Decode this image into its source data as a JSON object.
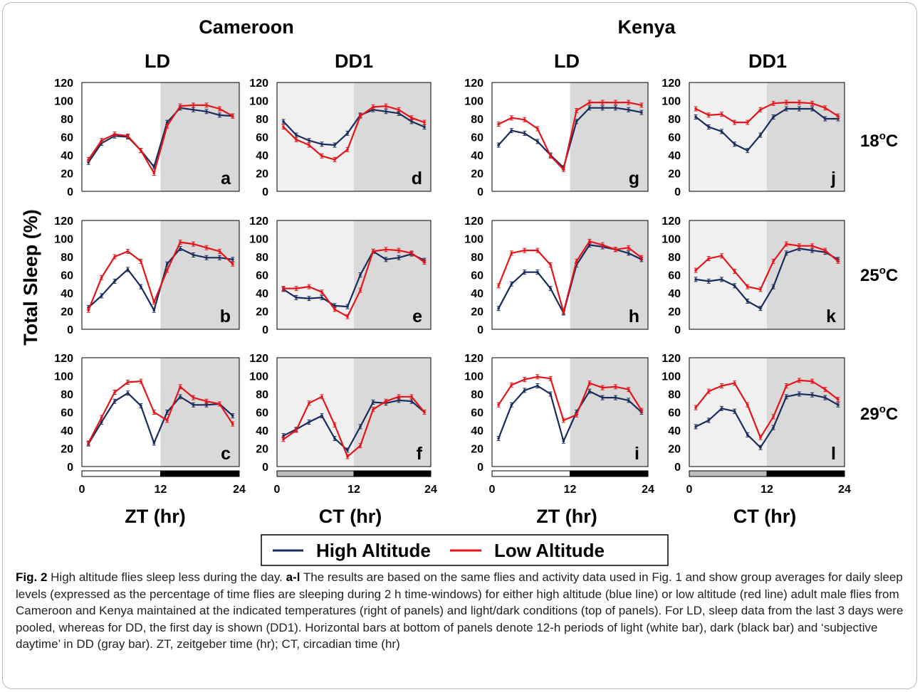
{
  "countries": [
    "Cameroon",
    "Kenya"
  ],
  "conditions": [
    "LD",
    "DD1",
    "LD",
    "DD1"
  ],
  "temperatures": [
    {
      "base": "18",
      "sup": "o",
      "unit": "C"
    },
    {
      "base": "25",
      "sup": "o",
      "unit": "C"
    },
    {
      "base": "29",
      "sup": "o",
      "unit": "C"
    }
  ],
  "ylabel": "Total Sleep (%)",
  "xlabels": [
    "ZT (hr)",
    "CT (hr)",
    "ZT (hr)",
    "CT (hr)"
  ],
  "legend": {
    "high": "High Altitude",
    "low": "Low Altitude"
  },
  "colors": {
    "high": "#1a2c5b",
    "low": "#e3151a",
    "light_period": "#ffffff",
    "subjective_day": "#f0f0f0",
    "dark_period": "#d9d9d9",
    "bar_dark": "#000000",
    "bar_gray": "#bdbdbd"
  },
  "caption": {
    "fig_label": "Fig. 2",
    "title": "High altitude flies sleep less during the day.",
    "panels_ref": "a-l",
    "text": "The results are based on the same flies and activity data used in Fig. 1 and show group averages for daily sleep levels (expressed as the percentage of time flies are sleeping during 2 h time-windows) for either high altitude (blue line) or low altitude (red line) adult male flies from Cameroon and Kenya maintained at the indicated temperatures (right of panels) and light/dark conditions (top of panels). For LD, sleep data from the last 3 days were pooled, whereas for DD, the first day is shown (DD1). Horizontal bars at bottom of panels denote 12-h periods of light (white bar), dark (black bar) and ‘subjective daytime’ in DD (gray bar). ZT, zeitgeber time (hr); CT, circadian time (hr)"
  },
  "chart_data": [
    {
      "panel": "a",
      "country": "Cameroon",
      "condition": "LD",
      "temp": "18oC",
      "type": "line",
      "x": [
        1,
        3,
        5,
        7,
        9,
        11,
        13,
        15,
        17,
        19,
        21,
        23
      ],
      "ylim": [
        0,
        120
      ],
      "xticks": [
        0,
        12,
        24
      ],
      "series": [
        {
          "name": "High Altitude",
          "values": [
            32,
            53,
            61,
            60,
            45,
            27,
            76,
            92,
            90,
            88,
            84,
            83
          ]
        },
        {
          "name": "Low Altitude",
          "values": [
            35,
            56,
            63,
            61,
            45,
            20,
            72,
            94,
            95,
            95,
            91,
            83
          ]
        }
      ]
    },
    {
      "panel": "b",
      "country": "Cameroon",
      "condition": "LD",
      "temp": "25oC",
      "type": "line",
      "x": [
        1,
        3,
        5,
        7,
        9,
        11,
        13,
        15,
        17,
        19,
        21,
        23
      ],
      "ylim": [
        0,
        120
      ],
      "xticks": [
        0,
        12,
        24
      ],
      "series": [
        {
          "name": "High Altitude",
          "values": [
            24,
            37,
            53,
            66,
            47,
            21,
            72,
            89,
            82,
            79,
            79,
            77
          ]
        },
        {
          "name": "Low Altitude",
          "values": [
            21,
            57,
            80,
            86,
            75,
            30,
            65,
            96,
            94,
            90,
            86,
            72
          ]
        }
      ]
    },
    {
      "panel": "c",
      "country": "Cameroon",
      "condition": "LD",
      "temp": "29oC",
      "type": "line",
      "x": [
        1,
        3,
        5,
        7,
        9,
        11,
        13,
        15,
        17,
        19,
        21,
        23
      ],
      "ylim": [
        0,
        120
      ],
      "xticks": [
        0,
        12,
        24
      ],
      "series": [
        {
          "name": "High Altitude",
          "values": [
            25,
            49,
            72,
            81,
            67,
            26,
            60,
            77,
            68,
            68,
            69,
            56
          ]
        },
        {
          "name": "Low Altitude",
          "values": [
            26,
            54,
            82,
            93,
            94,
            60,
            51,
            88,
            76,
            72,
            69,
            47
          ]
        }
      ]
    },
    {
      "panel": "d",
      "country": "Cameroon",
      "condition": "DD1",
      "temp": "18oC",
      "type": "line",
      "x": [
        1,
        3,
        5,
        7,
        9,
        11,
        13,
        15,
        17,
        19,
        21,
        23
      ],
      "ylim": [
        0,
        120
      ],
      "xticks": [
        0,
        12,
        24
      ],
      "series": [
        {
          "name": "High Altitude",
          "values": [
            77,
            62,
            56,
            52,
            51,
            64,
            84,
            90,
            88,
            86,
            77,
            71
          ]
        },
        {
          "name": "Low Altitude",
          "values": [
            71,
            57,
            51,
            39,
            35,
            46,
            83,
            93,
            94,
            90,
            81,
            76
          ]
        }
      ]
    },
    {
      "panel": "e",
      "country": "Cameroon",
      "condition": "DD1",
      "temp": "25oC",
      "type": "line",
      "x": [
        1,
        3,
        5,
        7,
        9,
        11,
        13,
        15,
        17,
        19,
        21,
        23
      ],
      "ylim": [
        0,
        120
      ],
      "xticks": [
        0,
        12,
        24
      ],
      "series": [
        {
          "name": "High Altitude",
          "values": [
            44,
            35,
            34,
            35,
            26,
            25,
            60,
            86,
            77,
            79,
            83,
            76
          ]
        },
        {
          "name": "Low Altitude",
          "values": [
            45,
            45,
            47,
            41,
            22,
            14,
            43,
            86,
            88,
            87,
            84,
            74
          ]
        }
      ]
    },
    {
      "panel": "f",
      "country": "Cameroon",
      "condition": "DD1",
      "temp": "29oC",
      "type": "line",
      "x": [
        1,
        3,
        5,
        7,
        9,
        11,
        13,
        15,
        17,
        19,
        21,
        23
      ],
      "ylim": [
        0,
        120
      ],
      "xticks": [
        0,
        12,
        24
      ],
      "series": [
        {
          "name": "High Altitude",
          "values": [
            34,
            41,
            49,
            56,
            31,
            18,
            44,
            71,
            70,
            73,
            72,
            60
          ]
        },
        {
          "name": "Low Altitude",
          "values": [
            30,
            40,
            70,
            77,
            46,
            11,
            23,
            63,
            72,
            77,
            77,
            60
          ]
        }
      ]
    },
    {
      "panel": "g",
      "country": "Kenya",
      "condition": "LD",
      "temp": "18oC",
      "type": "line",
      "x": [
        1,
        3,
        5,
        7,
        9,
        11,
        13,
        15,
        17,
        19,
        21,
        23
      ],
      "ylim": [
        0,
        120
      ],
      "xticks": [
        0,
        12,
        24
      ],
      "series": [
        {
          "name": "High Altitude",
          "values": [
            51,
            67,
            64,
            55,
            40,
            26,
            77,
            92,
            92,
            92,
            90,
            87
          ]
        },
        {
          "name": "Low Altitude",
          "values": [
            74,
            81,
            79,
            69,
            39,
            24,
            89,
            98,
            98,
            98,
            98,
            95
          ]
        }
      ]
    },
    {
      "panel": "h",
      "country": "Kenya",
      "condition": "LD",
      "temp": "25oC",
      "type": "line",
      "x": [
        1,
        3,
        5,
        7,
        9,
        11,
        13,
        15,
        17,
        19,
        21,
        23
      ],
      "ylim": [
        0,
        120
      ],
      "xticks": [
        0,
        12,
        24
      ],
      "series": [
        {
          "name": "High Altitude",
          "values": [
            23,
            50,
            63,
            63,
            45,
            18,
            71,
            93,
            91,
            88,
            84,
            77
          ]
        },
        {
          "name": "Low Altitude",
          "values": [
            48,
            84,
            87,
            87,
            71,
            19,
            75,
            97,
            93,
            88,
            90,
            79
          ]
        }
      ]
    },
    {
      "panel": "i",
      "country": "Kenya",
      "condition": "LD",
      "temp": "29oC",
      "type": "line",
      "x": [
        1,
        3,
        5,
        7,
        9,
        11,
        13,
        15,
        17,
        19,
        21,
        23
      ],
      "ylim": [
        0,
        120
      ],
      "xticks": [
        0,
        12,
        24
      ],
      "series": [
        {
          "name": "High Altitude",
          "values": [
            31,
            68,
            84,
            89,
            80,
            28,
            60,
            83,
            76,
            76,
            73,
            60
          ]
        },
        {
          "name": "Low Altitude",
          "values": [
            68,
            90,
            96,
            99,
            97,
            51,
            57,
            92,
            87,
            88,
            85,
            62
          ]
        }
      ]
    },
    {
      "panel": "j",
      "country": "Kenya",
      "condition": "DD1",
      "temp": "18oC",
      "type": "line",
      "x": [
        1,
        3,
        5,
        7,
        9,
        11,
        13,
        15,
        17,
        19,
        21,
        23
      ],
      "ylim": [
        0,
        120
      ],
      "xticks": [
        0,
        12,
        24
      ],
      "series": [
        {
          "name": "High Altitude",
          "values": [
            82,
            71,
            66,
            52,
            45,
            62,
            82,
            91,
            91,
            91,
            80,
            80
          ]
        },
        {
          "name": "Low Altitude",
          "values": [
            91,
            84,
            85,
            76,
            76,
            90,
            97,
            98,
            98,
            97,
            92,
            83
          ]
        }
      ]
    },
    {
      "panel": "k",
      "country": "Kenya",
      "condition": "DD1",
      "temp": "25oC",
      "type": "line",
      "x": [
        1,
        3,
        5,
        7,
        9,
        11,
        13,
        15,
        17,
        19,
        21,
        23
      ],
      "ylim": [
        0,
        120
      ],
      "xticks": [
        0,
        12,
        24
      ],
      "series": [
        {
          "name": "High Altitude",
          "values": [
            55,
            53,
            55,
            48,
            31,
            23,
            47,
            84,
            89,
            87,
            85,
            77
          ]
        },
        {
          "name": "Low Altitude",
          "values": [
            65,
            78,
            81,
            64,
            47,
            44,
            75,
            94,
            92,
            92,
            87,
            75
          ]
        }
      ]
    },
    {
      "panel": "l",
      "country": "Kenya",
      "condition": "DD1",
      "temp": "29oC",
      "type": "line",
      "x": [
        1,
        3,
        5,
        7,
        9,
        11,
        13,
        15,
        17,
        19,
        21,
        23
      ],
      "ylim": [
        0,
        120
      ],
      "xticks": [
        0,
        12,
        24
      ],
      "series": [
        {
          "name": "High Altitude",
          "values": [
            44,
            51,
            64,
            61,
            35,
            21,
            43,
            77,
            80,
            79,
            76,
            68
          ]
        },
        {
          "name": "Low Altitude",
          "values": [
            65,
            83,
            89,
            92,
            68,
            32,
            55,
            89,
            95,
            94,
            85,
            74
          ]
        }
      ]
    }
  ]
}
